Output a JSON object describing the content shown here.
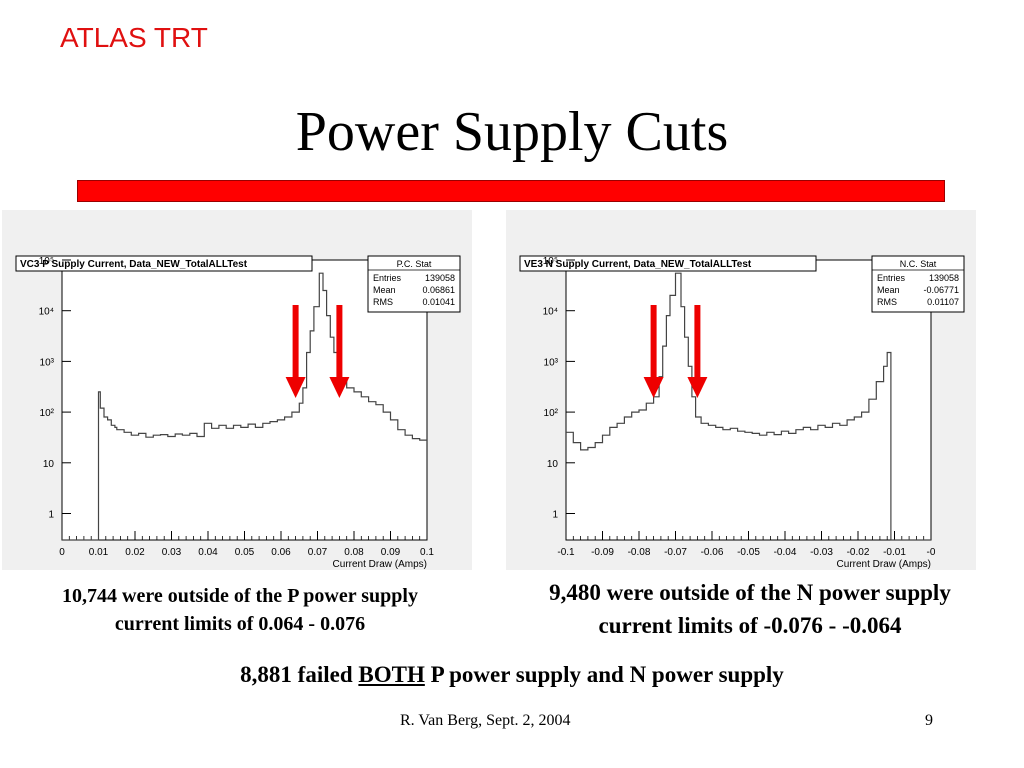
{
  "header": {
    "tag": "ATLAS TRT",
    "title": "Power Supply Cuts"
  },
  "chart_data": [
    {
      "type": "histogram",
      "title": "VC3 P Supply Current, Data_NEW_TotalALLTest",
      "xlabel": "Current Draw (Amps)",
      "xlim": [
        0,
        0.1
      ],
      "ylim": [
        0.3,
        100000
      ],
      "yscale": "log",
      "x_ticks": [
        "0",
        "0.01",
        "0.02",
        "0.03",
        "0.04",
        "0.05",
        "0.06",
        "0.07",
        "0.08",
        "0.09",
        "0.1"
      ],
      "y_ticks": [
        "1",
        "10",
        "10²",
        "10³",
        "10⁴",
        "10⁵"
      ],
      "stats": {
        "title": "P.C. Stat",
        "rows": [
          [
            "Entries",
            "139058"
          ],
          [
            "Mean",
            "0.06861"
          ],
          [
            "RMS",
            "0.01041"
          ]
        ]
      },
      "arrows_x": [
        0.064,
        0.076
      ],
      "steps": [
        [
          0.0,
          0.3
        ],
        [
          0.01,
          250
        ],
        [
          0.0105,
          120
        ],
        [
          0.0115,
          80
        ],
        [
          0.0125,
          70
        ],
        [
          0.0135,
          55
        ],
        [
          0.0145,
          50
        ],
        [
          0.015,
          45
        ],
        [
          0.017,
          40
        ],
        [
          0.019,
          35
        ],
        [
          0.021,
          38
        ],
        [
          0.023,
          32
        ],
        [
          0.025,
          35
        ],
        [
          0.027,
          36
        ],
        [
          0.029,
          33
        ],
        [
          0.031,
          37
        ],
        [
          0.033,
          35
        ],
        [
          0.035,
          38
        ],
        [
          0.037,
          33
        ],
        [
          0.039,
          60
        ],
        [
          0.041,
          48
        ],
        [
          0.043,
          55
        ],
        [
          0.045,
          48
        ],
        [
          0.047,
          55
        ],
        [
          0.049,
          50
        ],
        [
          0.051,
          58
        ],
        [
          0.053,
          50
        ],
        [
          0.055,
          60
        ],
        [
          0.057,
          65
        ],
        [
          0.059,
          70
        ],
        [
          0.061,
          80
        ],
        [
          0.063,
          100
        ],
        [
          0.065,
          150
        ],
        [
          0.066,
          300
        ],
        [
          0.067,
          1500
        ],
        [
          0.068,
          4000
        ],
        [
          0.069,
          12000
        ],
        [
          0.0705,
          55000
        ],
        [
          0.0715,
          25000
        ],
        [
          0.0725,
          8000
        ],
        [
          0.0735,
          3000
        ],
        [
          0.0745,
          1500
        ],
        [
          0.0755,
          700
        ],
        [
          0.0765,
          400
        ],
        [
          0.078,
          300
        ],
        [
          0.08,
          250
        ],
        [
          0.082,
          200
        ],
        [
          0.084,
          160
        ],
        [
          0.086,
          140
        ],
        [
          0.088,
          100
        ],
        [
          0.09,
          70
        ],
        [
          0.092,
          45
        ],
        [
          0.094,
          35
        ],
        [
          0.096,
          30
        ],
        [
          0.098,
          28
        ],
        [
          0.1,
          28
        ]
      ]
    },
    {
      "type": "histogram",
      "title": "VE3 N Supply Current, Data_NEW_TotalALLTest",
      "xlabel": "Current Draw (Amps)",
      "xlim": [
        -0.1,
        0
      ],
      "ylim": [
        0.3,
        100000
      ],
      "yscale": "log",
      "x_ticks": [
        "-0.1",
        "-0.09",
        "-0.08",
        "-0.07",
        "-0.06",
        "-0.05",
        "-0.04",
        "-0.03",
        "-0.02",
        "-0.01",
        "-0"
      ],
      "y_ticks": [
        "1",
        "10",
        "10²",
        "10³",
        "10⁴",
        "10⁵"
      ],
      "stats": {
        "title": "N.C. Stat",
        "rows": [
          [
            "Entries",
            "139058"
          ],
          [
            "Mean",
            "-0.06771"
          ],
          [
            "RMS",
            "0.01107"
          ]
        ]
      },
      "arrows_x": [
        -0.076,
        -0.064
      ],
      "steps": [
        [
          -0.1,
          40
        ],
        [
          -0.098,
          25
        ],
        [
          -0.096,
          18
        ],
        [
          -0.094,
          20
        ],
        [
          -0.092,
          25
        ],
        [
          -0.09,
          35
        ],
        [
          -0.088,
          50
        ],
        [
          -0.086,
          60
        ],
        [
          -0.084,
          80
        ],
        [
          -0.082,
          100
        ],
        [
          -0.08,
          110
        ],
        [
          -0.078,
          150
        ],
        [
          -0.076,
          200
        ],
        [
          -0.0745,
          500
        ],
        [
          -0.0735,
          2000
        ],
        [
          -0.0725,
          8000
        ],
        [
          -0.0715,
          20000
        ],
        [
          -0.07,
          55000
        ],
        [
          -0.0685,
          12000
        ],
        [
          -0.0675,
          3000
        ],
        [
          -0.0665,
          800
        ],
        [
          -0.0655,
          200
        ],
        [
          -0.0645,
          80
        ],
        [
          -0.063,
          60
        ],
        [
          -0.061,
          55
        ],
        [
          -0.059,
          50
        ],
        [
          -0.057,
          45
        ],
        [
          -0.055,
          48
        ],
        [
          -0.053,
          42
        ],
        [
          -0.051,
          40
        ],
        [
          -0.049,
          38
        ],
        [
          -0.047,
          35
        ],
        [
          -0.045,
          40
        ],
        [
          -0.043,
          36
        ],
        [
          -0.041,
          42
        ],
        [
          -0.039,
          38
        ],
        [
          -0.037,
          45
        ],
        [
          -0.035,
          50
        ],
        [
          -0.033,
          45
        ],
        [
          -0.031,
          55
        ],
        [
          -0.029,
          50
        ],
        [
          -0.027,
          60
        ],
        [
          -0.025,
          55
        ],
        [
          -0.023,
          70
        ],
        [
          -0.021,
          80
        ],
        [
          -0.019,
          100
        ],
        [
          -0.017,
          180
        ],
        [
          -0.015,
          400
        ],
        [
          -0.013,
          800
        ],
        [
          -0.012,
          1500
        ],
        [
          -0.011,
          0.3
        ],
        [
          0,
          0.3
        ]
      ]
    }
  ],
  "captions": {
    "left_line1": "10,744 were outside of the P power supply",
    "left_line2": "current limits of 0.064 - 0.076",
    "right_line1": "9,480 were outside of the N power supply",
    "right_line2": "current limits of -0.076 - -0.064",
    "both_prefix": "8,881 failed ",
    "both_word": "BOTH",
    "both_suffix": " P power supply and N power supply"
  },
  "footer": {
    "author_date": "R. Van Berg, Sept. 2, 2004",
    "page": "9"
  }
}
